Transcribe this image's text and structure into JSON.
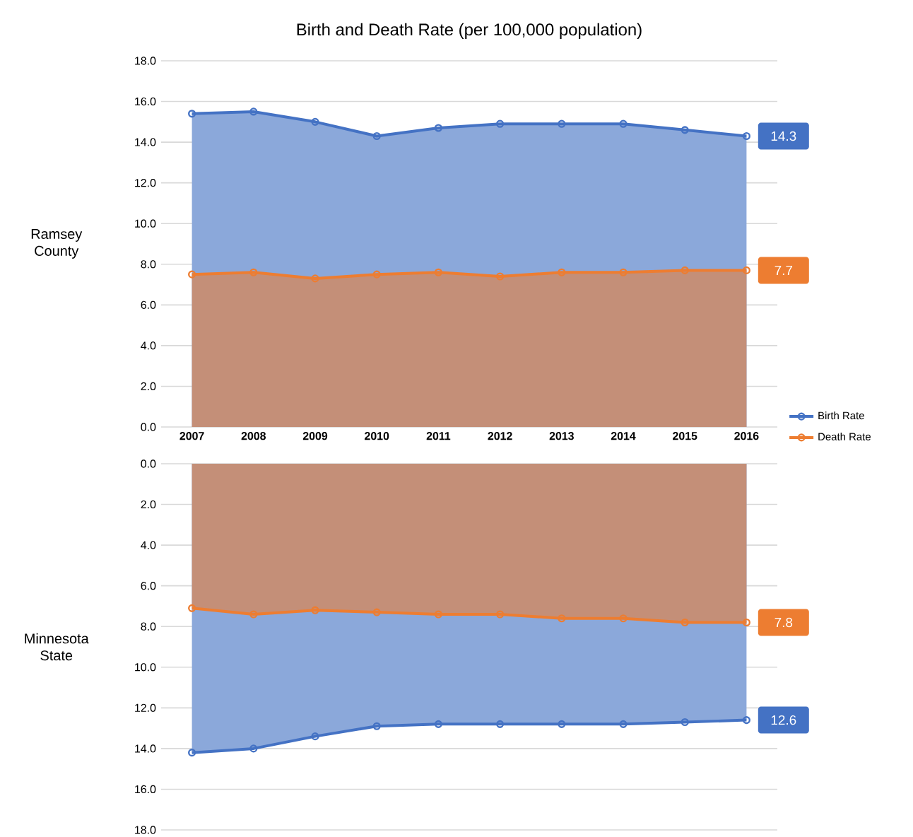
{
  "chart_data": [
    {
      "type": "area",
      "title": "Birth and Death Rate (per 100,000 population)",
      "ylabel": "Ramsey County",
      "categories": [
        "2007",
        "2008",
        "2009",
        "2010",
        "2011",
        "2012",
        "2013",
        "2014",
        "2015",
        "2016"
      ],
      "ylim": [
        0,
        18
      ],
      "yticks": [
        {
          "value": 0,
          "label": "0.0"
        },
        {
          "value": 2,
          "label": "2.0"
        },
        {
          "value": 4,
          "label": "4.0"
        },
        {
          "value": 6,
          "label": "6.0"
        },
        {
          "value": 8,
          "label": "8.0"
        },
        {
          "value": 10,
          "label": "10.0"
        },
        {
          "value": 12,
          "label": "12.0"
        },
        {
          "value": 14,
          "label": "14.0"
        },
        {
          "value": 16,
          "label": "16.0"
        },
        {
          "value": 18,
          "label": "18.0"
        }
      ],
      "grid": "y",
      "marker": "circle",
      "legend": "right",
      "series": [
        {
          "name": "Birth Rate",
          "color": "#4472c4",
          "values": [
            15.4,
            15.5,
            15.0,
            14.3,
            14.7,
            14.9,
            14.9,
            14.9,
            14.6,
            14.3
          ],
          "value_labels": [
            null,
            null,
            null,
            null,
            null,
            null,
            null,
            null,
            null,
            "14.3"
          ]
        },
        {
          "name": "Death Rate",
          "color": "#ed7d31",
          "values": [
            7.5,
            7.6,
            7.3,
            7.5,
            7.6,
            7.4,
            7.6,
            7.6,
            7.7,
            7.7
          ],
          "value_labels": [
            null,
            null,
            null,
            null,
            null,
            null,
            null,
            null,
            null,
            "7.7"
          ]
        }
      ]
    },
    {
      "type": "area",
      "ylabel": "Minnesota State",
      "categories": [
        "2007",
        "2008",
        "2009",
        "2010",
        "2011",
        "2012",
        "2013",
        "2014",
        "2015",
        "2016"
      ],
      "ylim": [
        18,
        0
      ],
      "yticks": [
        {
          "value": 0,
          "label": "0.0"
        },
        {
          "value": 2,
          "label": "2.0"
        },
        {
          "value": 4,
          "label": "4.0"
        },
        {
          "value": 6,
          "label": "6.0"
        },
        {
          "value": 8,
          "label": "8.0"
        },
        {
          "value": 10,
          "label": "10.0"
        },
        {
          "value": 12,
          "label": "12.0"
        },
        {
          "value": 14,
          "label": "14.0"
        },
        {
          "value": 16,
          "label": "16.0"
        },
        {
          "value": 18,
          "label": "18.0"
        }
      ],
      "grid": "y",
      "marker": "circle",
      "tick_labels": "y",
      "series": [
        {
          "color": "#4472c4",
          "values": [
            14.2,
            14.0,
            13.4,
            12.9,
            12.8,
            12.8,
            12.8,
            12.8,
            12.7,
            12.6
          ],
          "value_labels": [
            null,
            null,
            null,
            null,
            null,
            null,
            null,
            null,
            null,
            "12.6"
          ]
        },
        {
          "color": "#ed7d31",
          "values": [
            7.1,
            7.4,
            7.2,
            7.3,
            7.4,
            7.4,
            7.6,
            7.6,
            7.8,
            7.8
          ],
          "value_labels": [
            null,
            null,
            null,
            null,
            null,
            null,
            null,
            null,
            null,
            "7.8"
          ]
        }
      ]
    }
  ]
}
